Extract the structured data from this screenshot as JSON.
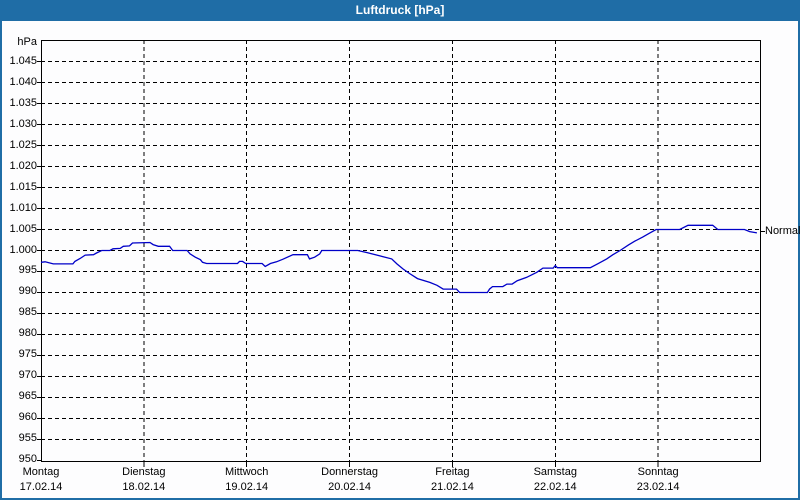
{
  "window": {
    "title": "Luftdruck [hPa]"
  },
  "colors": {
    "titlebar_bg": "#1f6da6",
    "titlebar_text": "#ffffff",
    "window_border": "#1f6da6",
    "background": "#fdfdfe",
    "plot_border": "#000000",
    "grid": "#000000",
    "line": "#0000c8",
    "text": "#000000"
  },
  "chart_data": {
    "type": "line",
    "title": "Luftdruck [hPa]",
    "y_unit": "hPa",
    "ylim": [
      950,
      1045
    ],
    "y_step": 5,
    "x_days": 7,
    "grid": "dashed horizontal every 5 hPa, dashed vertical at day boundaries",
    "legend_position": "none",
    "y_tick_labels": [
      {
        "label": "1.045",
        "value": 1045
      },
      {
        "label": "1.040",
        "value": 1040
      },
      {
        "label": "1.035",
        "value": 1035
      },
      {
        "label": "1.030",
        "value": 1030
      },
      {
        "label": "1.025",
        "value": 1025
      },
      {
        "label": "1.020",
        "value": 1020
      },
      {
        "label": "1.015",
        "value": 1015
      },
      {
        "label": "1.010",
        "value": 1010
      },
      {
        "label": "1.005",
        "value": 1005
      },
      {
        "label": "1.000",
        "value": 1000
      },
      {
        "label": "995",
        "value": 995
      },
      {
        "label": "990",
        "value": 990
      },
      {
        "label": "985",
        "value": 985
      },
      {
        "label": "980",
        "value": 980
      },
      {
        "label": "975",
        "value": 975
      },
      {
        "label": "970",
        "value": 970
      },
      {
        "label": "965",
        "value": 965
      },
      {
        "label": "960",
        "value": 960
      },
      {
        "label": "955",
        "value": 955
      },
      {
        "label": "950",
        "value": 950
      }
    ],
    "days": [
      {
        "name": "Montag",
        "date": "17.02.14"
      },
      {
        "name": "Dienstag",
        "date": "18.02.14"
      },
      {
        "name": "Mittwoch",
        "date": "19.02.14"
      },
      {
        "name": "Donnerstag",
        "date": "20.02.14"
      },
      {
        "name": "Freitag",
        "date": "21.02.14"
      },
      {
        "name": "Samstag",
        "date": "22.02.14"
      },
      {
        "name": "Sonntag",
        "date": "23.02.14"
      }
    ],
    "normal_marker": {
      "label": "Normal",
      "value": 1004.5
    },
    "series": [
      {
        "name": "Luftdruck",
        "color": "#0000c8",
        "points": [
          [
            0.0,
            997.2
          ],
          [
            0.04,
            997.3
          ],
          [
            0.12,
            996.8
          ],
          [
            0.31,
            996.8
          ],
          [
            0.33,
            997.4
          ],
          [
            0.38,
            998.1
          ],
          [
            0.43,
            998.9
          ],
          [
            0.51,
            999.0
          ],
          [
            0.54,
            999.4
          ],
          [
            0.59,
            1000.0
          ],
          [
            0.67,
            1000.0
          ],
          [
            0.7,
            1000.4
          ],
          [
            0.77,
            1000.5
          ],
          [
            0.8,
            1001.0
          ],
          [
            0.86,
            1001.1
          ],
          [
            0.89,
            1001.8
          ],
          [
            1.06,
            1001.9
          ],
          [
            1.09,
            1001.4
          ],
          [
            1.14,
            1001.0
          ],
          [
            1.25,
            1001.0
          ],
          [
            1.28,
            1000.0
          ],
          [
            1.42,
            1000.0
          ],
          [
            1.45,
            999.2
          ],
          [
            1.5,
            998.4
          ],
          [
            1.55,
            997.8
          ],
          [
            1.57,
            997.2
          ],
          [
            1.61,
            996.9
          ],
          [
            1.91,
            996.9
          ],
          [
            1.93,
            997.4
          ],
          [
            1.96,
            997.4
          ],
          [
            1.99,
            996.9
          ],
          [
            2.15,
            996.9
          ],
          [
            2.18,
            996.2
          ],
          [
            2.23,
            996.9
          ],
          [
            2.29,
            997.3
          ],
          [
            2.35,
            997.9
          ],
          [
            2.45,
            999.0
          ],
          [
            2.59,
            999.0
          ],
          [
            2.61,
            998.0
          ],
          [
            2.66,
            998.4
          ],
          [
            2.71,
            999.2
          ],
          [
            2.73,
            1000.0
          ],
          [
            3.08,
            1000.0
          ],
          [
            3.17,
            999.5
          ],
          [
            3.3,
            998.7
          ],
          [
            3.41,
            998.0
          ],
          [
            3.46,
            996.8
          ],
          [
            3.52,
            995.6
          ],
          [
            3.59,
            994.4
          ],
          [
            3.66,
            993.3
          ],
          [
            3.78,
            992.4
          ],
          [
            3.85,
            991.7
          ],
          [
            3.91,
            990.8
          ],
          [
            4.04,
            990.8
          ],
          [
            4.07,
            990.0
          ],
          [
            4.34,
            990.0
          ],
          [
            4.36,
            990.8
          ],
          [
            4.39,
            991.4
          ],
          [
            4.49,
            991.4
          ],
          [
            4.53,
            992.0
          ],
          [
            4.58,
            992.0
          ],
          [
            4.63,
            992.8
          ],
          [
            4.72,
            993.6
          ],
          [
            4.82,
            994.8
          ],
          [
            4.88,
            995.8
          ],
          [
            4.98,
            995.8
          ],
          [
            5.0,
            996.4
          ],
          [
            5.02,
            995.9
          ],
          [
            5.34,
            995.9
          ],
          [
            5.41,
            996.8
          ],
          [
            5.5,
            998.0
          ],
          [
            5.56,
            999.0
          ],
          [
            5.63,
            1000.0
          ],
          [
            5.71,
            1001.3
          ],
          [
            5.77,
            1002.2
          ],
          [
            5.85,
            1003.2
          ],
          [
            5.92,
            1004.2
          ],
          [
            5.98,
            1005.0
          ],
          [
            6.21,
            1005.0
          ],
          [
            6.29,
            1006.0
          ],
          [
            6.53,
            1006.0
          ],
          [
            6.58,
            1005.0
          ],
          [
            6.84,
            1005.0
          ],
          [
            6.89,
            1004.5
          ],
          [
            6.96,
            1004.2
          ]
        ]
      }
    ]
  }
}
